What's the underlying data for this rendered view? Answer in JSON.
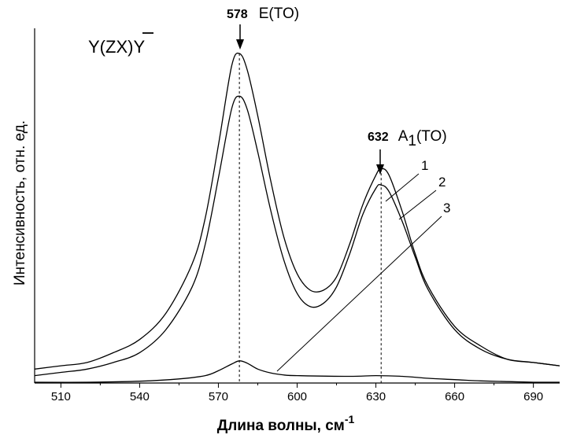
{
  "chart_data": {
    "type": "line",
    "xlabel": "Длина волны, см",
    "xlabel_sup": "-1",
    "ylabel": "Интенсивность, отн. ед.",
    "xlim": [
      500,
      700
    ],
    "x_ticks": [
      510,
      540,
      570,
      600,
      630,
      660,
      690
    ],
    "grid": false,
    "geometry_label": "Y(ZX)Y",
    "annotations": [
      {
        "x": 578,
        "value": "578",
        "label": "E(TO)"
      },
      {
        "x": 632,
        "value": "632",
        "label_main": "A",
        "label_sub": "1",
        "label_tail": "(TO)"
      }
    ],
    "series": [
      {
        "name": "1",
        "x": [
          500,
          510,
          520,
          530,
          540,
          550,
          560,
          565,
          570,
          575,
          578,
          581,
          585,
          590,
          595,
          600,
          605,
          610,
          615,
          620,
          625,
          630,
          632,
          635,
          640,
          645,
          650,
          660,
          670,
          680,
          690,
          700
        ],
        "values": [
          0.04,
          0.05,
          0.06,
          0.09,
          0.13,
          0.21,
          0.36,
          0.5,
          0.72,
          0.96,
          1.0,
          0.95,
          0.81,
          0.61,
          0.44,
          0.33,
          0.28,
          0.28,
          0.32,
          0.42,
          0.54,
          0.63,
          0.65,
          0.63,
          0.52,
          0.39,
          0.29,
          0.17,
          0.11,
          0.07,
          0.06,
          0.05
        ]
      },
      {
        "name": "2",
        "x": [
          500,
          510,
          520,
          530,
          540,
          550,
          560,
          565,
          570,
          575,
          578,
          581,
          585,
          590,
          595,
          600,
          605,
          610,
          615,
          620,
          625,
          630,
          632,
          635,
          640,
          645,
          650,
          660,
          670,
          680,
          690,
          700
        ],
        "values": [
          0.02,
          0.03,
          0.04,
          0.06,
          0.09,
          0.16,
          0.29,
          0.42,
          0.62,
          0.83,
          0.87,
          0.83,
          0.7,
          0.52,
          0.37,
          0.27,
          0.23,
          0.24,
          0.29,
          0.39,
          0.51,
          0.59,
          0.6,
          0.58,
          0.49,
          0.38,
          0.28,
          0.16,
          0.1,
          0.07,
          0.06,
          0.05
        ]
      },
      {
        "name": "3",
        "x": [
          500,
          520,
          540,
          555,
          565,
          570,
          575,
          578,
          581,
          585,
          590,
          595,
          600,
          620,
          630,
          640,
          650,
          660,
          670,
          680,
          690,
          700
        ],
        "values": [
          0.0,
          0.0,
          0.003,
          0.01,
          0.02,
          0.035,
          0.055,
          0.065,
          0.058,
          0.04,
          0.028,
          0.022,
          0.02,
          0.018,
          0.02,
          0.018,
          0.012,
          0.008,
          0.004,
          0.002,
          0.0,
          0.0
        ]
      }
    ]
  }
}
